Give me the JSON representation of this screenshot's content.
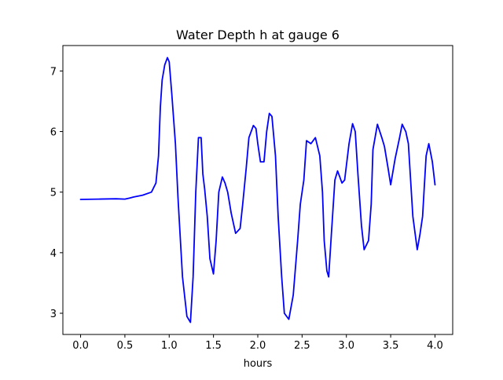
{
  "chart_data": {
    "type": "line",
    "title": "Water Depth h at gauge 6",
    "xlabel": "hours",
    "ylabel": "",
    "xlim": [
      -0.2,
      4.2
    ],
    "ylim": [
      2.65,
      7.42
    ],
    "xticks": [
      0.0,
      0.5,
      1.0,
      1.5,
      2.0,
      2.5,
      3.0,
      3.5,
      4.0
    ],
    "xtick_labels": [
      "0.0",
      "0.5",
      "1.0",
      "1.5",
      "2.0",
      "2.5",
      "3.0",
      "3.5",
      "4.0"
    ],
    "yticks": [
      3,
      4,
      5,
      6,
      7
    ],
    "ytick_labels": [
      "3",
      "4",
      "5",
      "6",
      "7"
    ],
    "grid": false,
    "series": [
      {
        "color": "#0000ff",
        "x": [
          0.0,
          0.2,
          0.4,
          0.5,
          0.55,
          0.6,
          0.7,
          0.8,
          0.85,
          0.88,
          0.9,
          0.92,
          0.95,
          0.98,
          1.0,
          1.03,
          1.07,
          1.1,
          1.15,
          1.2,
          1.24,
          1.27,
          1.3,
          1.33,
          1.36,
          1.38,
          1.4,
          1.43,
          1.46,
          1.5,
          1.53,
          1.56,
          1.6,
          1.63,
          1.66,
          1.7,
          1.75,
          1.8,
          1.83,
          1.87,
          1.9,
          1.95,
          1.98,
          2.0,
          2.03,
          2.07,
          2.1,
          2.13,
          2.16,
          2.2,
          2.23,
          2.27,
          2.3,
          2.35,
          2.4,
          2.45,
          2.48,
          2.52,
          2.55,
          2.6,
          2.65,
          2.7,
          2.73,
          2.75,
          2.78,
          2.8,
          2.83,
          2.87,
          2.9,
          2.95,
          2.98,
          3.03,
          3.07,
          3.1,
          3.13,
          3.17,
          3.2,
          3.25,
          3.28,
          3.3,
          3.35,
          3.4,
          3.43,
          3.47,
          3.5,
          3.55,
          3.6,
          3.63,
          3.67,
          3.7,
          3.75,
          3.8,
          3.83,
          3.86,
          3.88,
          3.9,
          3.93,
          3.97,
          4.0
        ],
        "y": [
          4.88,
          4.885,
          4.89,
          4.885,
          4.9,
          4.92,
          4.95,
          5.0,
          5.15,
          5.6,
          6.4,
          6.85,
          7.1,
          7.22,
          7.15,
          6.6,
          5.8,
          4.9,
          3.6,
          2.95,
          2.85,
          3.6,
          5.0,
          5.9,
          5.9,
          5.3,
          5.05,
          4.6,
          3.9,
          3.65,
          4.2,
          5.0,
          5.25,
          5.15,
          5.0,
          4.65,
          4.32,
          4.4,
          4.8,
          5.4,
          5.9,
          6.1,
          6.05,
          5.8,
          5.5,
          5.5,
          6.0,
          6.3,
          6.25,
          5.6,
          4.6,
          3.6,
          3.0,
          2.9,
          3.3,
          4.2,
          4.8,
          5.2,
          5.85,
          5.8,
          5.9,
          5.6,
          5.0,
          4.2,
          3.7,
          3.6,
          4.3,
          5.2,
          5.35,
          5.15,
          5.2,
          5.8,
          6.13,
          6.0,
          5.3,
          4.45,
          4.05,
          4.2,
          4.8,
          5.7,
          6.12,
          5.9,
          5.75,
          5.4,
          5.12,
          5.55,
          5.9,
          6.12,
          6.0,
          5.8,
          4.6,
          4.05,
          4.3,
          4.6,
          5.1,
          5.6,
          5.8,
          5.5,
          5.12
        ]
      }
    ]
  }
}
